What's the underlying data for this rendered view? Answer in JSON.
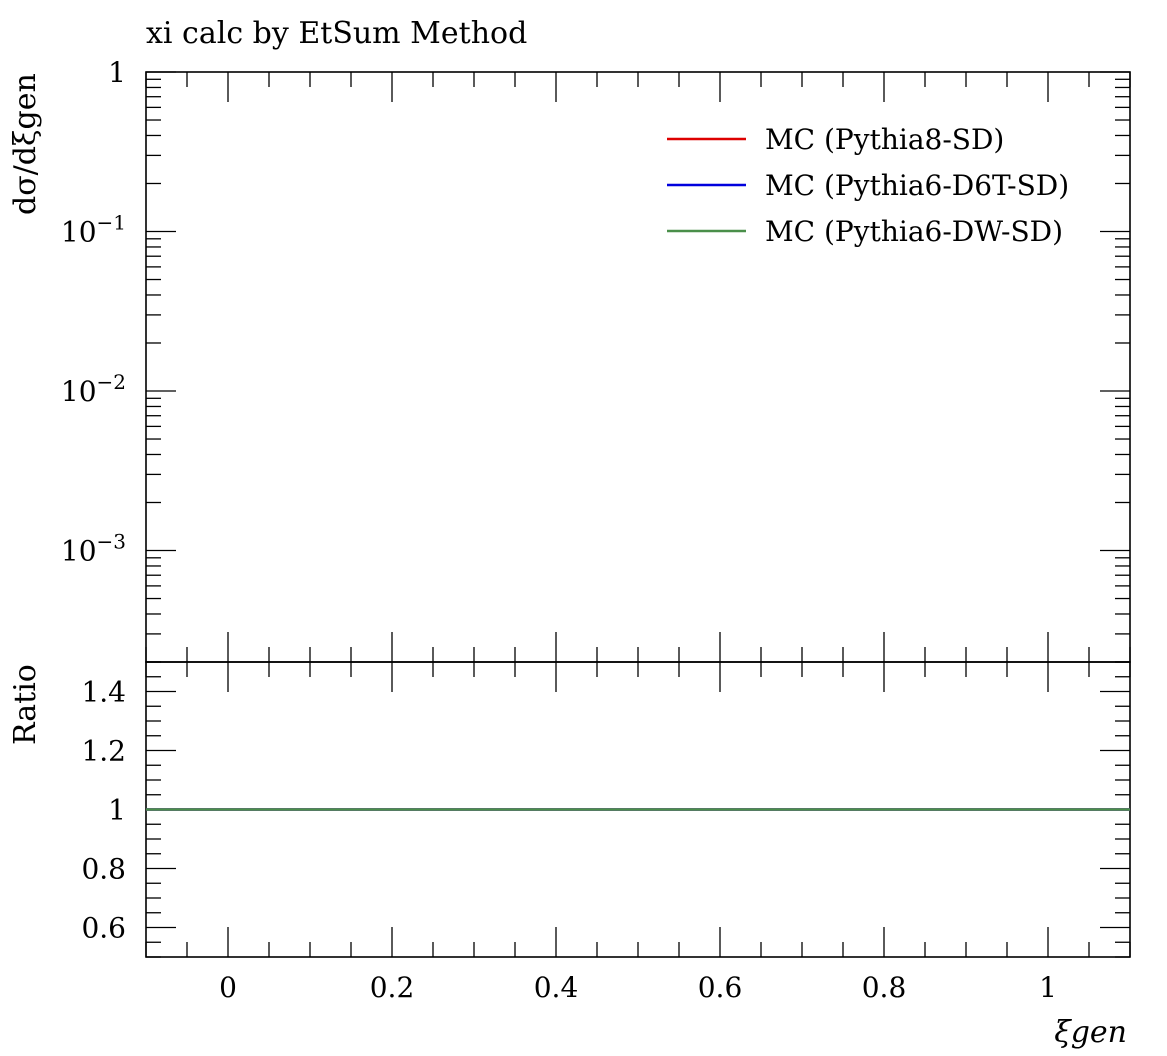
{
  "chart_data": {
    "type": "line",
    "title": "xi calc by EtSum Method",
    "xlabel": "ξgen",
    "xlim": [
      -0.1,
      1.1
    ],
    "x_ticks": [
      {
        "value": 0,
        "label": "0"
      },
      {
        "value": 0.2,
        "label": "0.2"
      },
      {
        "value": 0.4,
        "label": "0.4"
      },
      {
        "value": 0.6,
        "label": "0.6"
      },
      {
        "value": 0.8,
        "label": "0.8"
      },
      {
        "value": 1,
        "label": "1"
      }
    ],
    "main_panel": {
      "ylabel": "dσ/dξgen",
      "yscale": "log",
      "ylim": [
        0.0002,
        1
      ],
      "y_ticks": [
        {
          "value": 1,
          "label": "1"
        },
        {
          "value": 0.1,
          "label": "10⁻¹"
        },
        {
          "value": 0.01,
          "label": "10⁻²"
        },
        {
          "value": 0.001,
          "label": "10⁻³"
        }
      ],
      "legend_placement": "top-right"
    },
    "ratio_panel": {
      "ylabel": "Ratio",
      "ylim": [
        0.5,
        1.5
      ],
      "y_ticks": [
        {
          "value": 0.6,
          "label": "0.6"
        },
        {
          "value": 0.8,
          "label": "0.8"
        },
        {
          "value": 1,
          "label": "1"
        },
        {
          "value": 1.2,
          "label": "1.2"
        },
        {
          "value": 1.4,
          "label": "1.4"
        }
      ]
    },
    "series": [
      {
        "name": "MC (Pythia8-SD)",
        "color": "#dd0000",
        "ratio_x": [
          -0.1,
          1.1
        ],
        "ratio_y": [
          1,
          1
        ]
      },
      {
        "name": "MC (Pythia6-D6T-SD)",
        "color": "#0000dd",
        "ratio_x": [
          -0.1,
          1.1
        ],
        "ratio_y": [
          1,
          1
        ]
      },
      {
        "name": "MC (Pythia6-DW-SD)",
        "color": "#4a8f4a",
        "ratio_x": [
          -0.1,
          1.1
        ],
        "ratio_y": [
          1,
          1
        ]
      }
    ]
  }
}
